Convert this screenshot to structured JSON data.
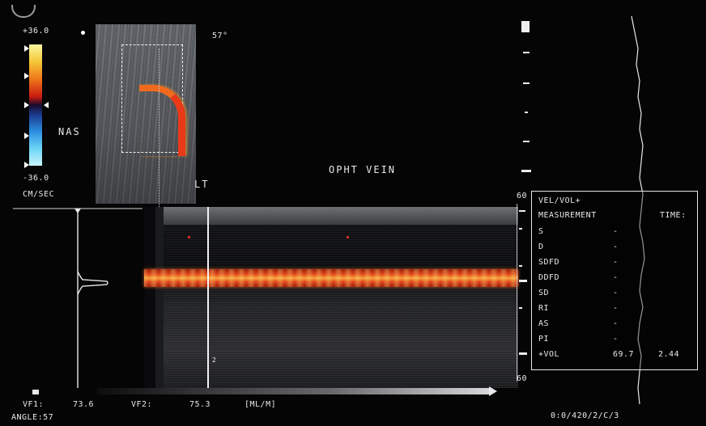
{
  "scale": {
    "max_label": "+36.0",
    "min_label": "-36.0",
    "unit_label": "CM/SEC",
    "direction_label": "NAS"
  },
  "sector": {
    "angle_label": "57°"
  },
  "labels": {
    "vessel_name": "OPHT VEIN",
    "side_label": "LT"
  },
  "depth_scale": {
    "top_label": "60",
    "bottom_label": "60"
  },
  "measurements": {
    "header": "VEL/VOL+",
    "col1_header": "MEASUREMENT",
    "col2_header": "TIME:",
    "rows": [
      {
        "label": "S",
        "value": "-",
        "value2": ""
      },
      {
        "label": "D",
        "value": "-",
        "value2": ""
      },
      {
        "label": "SDFD",
        "value": "-",
        "value2": ""
      },
      {
        "label": "DDFD",
        "value": "-",
        "value2": ""
      },
      {
        "label": "SD",
        "value": "-",
        "value2": ""
      },
      {
        "label": "RI",
        "value": "-",
        "value2": ""
      },
      {
        "label": "AS",
        "value": "-",
        "value2": ""
      },
      {
        "label": "PI",
        "value": "-",
        "value2": ""
      },
      {
        "label": "+VOL",
        "value": "69.7",
        "value2": "2.44"
      }
    ]
  },
  "bottom": {
    "vf1_label": "VF1:",
    "vf1_value": "73.6",
    "vf2_label": "VF2:",
    "vf2_value": "75.3",
    "unit": "[ML/M]",
    "angle_text": "ANGLE:57",
    "status_text": "0:0/420/2/C/3",
    "marker_small": "2"
  },
  "colors": {
    "background": "#050506",
    "flow_red": "#e2421a",
    "text": "#e8e8ea"
  }
}
